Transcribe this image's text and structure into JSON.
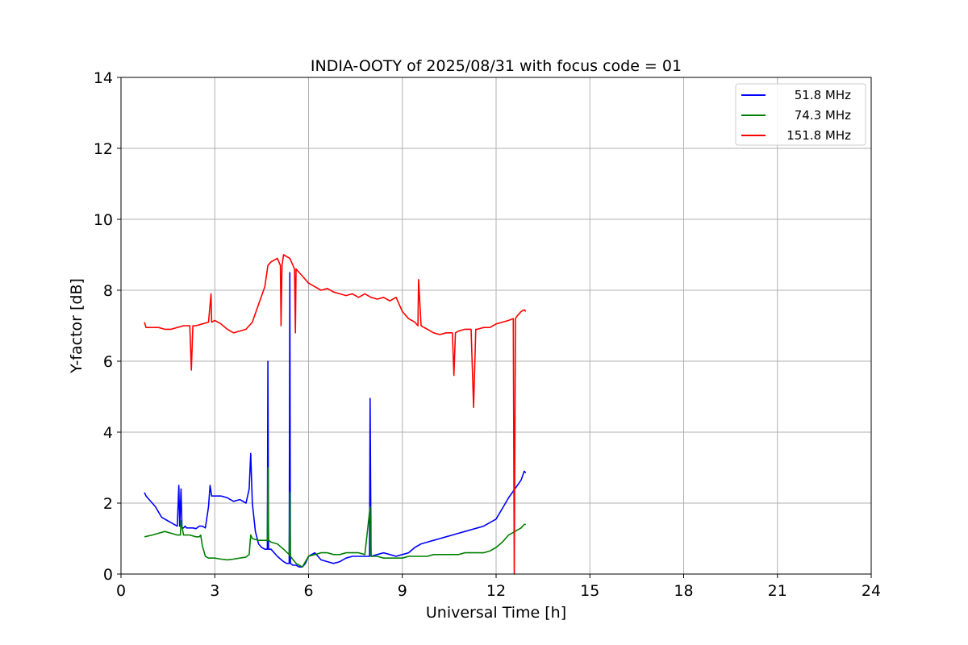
{
  "chart_data": {
    "type": "line",
    "title": "INDIA-OOTY of 2025/08/31 with focus code = 01",
    "xlabel": "Universal Time [h]",
    "ylabel": "Y-factor [dB]",
    "xlim": [
      0,
      24
    ],
    "ylim": [
      0,
      14
    ],
    "xticks": [
      0,
      3,
      6,
      9,
      12,
      15,
      18,
      21,
      24
    ],
    "yticks": [
      0,
      2,
      4,
      6,
      8,
      10,
      12,
      14
    ],
    "grid": true,
    "legend_position": "top-right",
    "series": [
      {
        "name": "51.8 MHz",
        "color": "#0000ff",
        "x": [
          0.75,
          0.8,
          0.9,
          1.0,
          1.1,
          1.2,
          1.3,
          1.4,
          1.5,
          1.6,
          1.7,
          1.8,
          1.85,
          1.88,
          1.92,
          1.95,
          2.0,
          2.05,
          2.1,
          2.2,
          2.3,
          2.4,
          2.5,
          2.6,
          2.7,
          2.8,
          2.85,
          2.9,
          3.0,
          3.2,
          3.4,
          3.6,
          3.8,
          4.0,
          4.1,
          4.15,
          4.2,
          4.3,
          4.4,
          4.5,
          4.6,
          4.68,
          4.7,
          4.72,
          4.8,
          5.0,
          5.2,
          5.3,
          5.38,
          5.4,
          5.42,
          5.5,
          5.6,
          5.7,
          5.8,
          5.9,
          6.0,
          6.2,
          6.4,
          6.6,
          6.8,
          7.0,
          7.2,
          7.4,
          7.5,
          7.6,
          7.8,
          7.95,
          7.97,
          8.0,
          8.2,
          8.4,
          8.6,
          8.8,
          9.0,
          9.2,
          9.4,
          9.6,
          9.8,
          10.0,
          10.2,
          10.4,
          10.6,
          10.8,
          11.0,
          11.2,
          11.4,
          11.6,
          11.8,
          12.0,
          12.2,
          12.4,
          12.6,
          12.8,
          12.9,
          12.95
        ],
        "y": [
          2.3,
          2.2,
          2.1,
          2.0,
          1.9,
          1.75,
          1.6,
          1.55,
          1.5,
          1.45,
          1.4,
          1.35,
          2.5,
          1.35,
          2.4,
          1.3,
          1.3,
          1.35,
          1.3,
          1.3,
          1.3,
          1.28,
          1.35,
          1.35,
          1.3,
          1.9,
          2.5,
          2.2,
          2.2,
          2.2,
          2.15,
          2.05,
          2.1,
          2.0,
          2.4,
          3.4,
          2.0,
          1.2,
          0.85,
          0.75,
          0.7,
          0.7,
          6.0,
          0.7,
          0.7,
          0.5,
          0.35,
          0.3,
          0.3,
          8.5,
          0.3,
          0.25,
          0.25,
          0.2,
          0.2,
          0.3,
          0.5,
          0.6,
          0.4,
          0.35,
          0.3,
          0.35,
          0.45,
          0.5,
          0.5,
          0.5,
          0.5,
          0.5,
          4.95,
          0.5,
          0.55,
          0.6,
          0.55,
          0.5,
          0.55,
          0.6,
          0.75,
          0.85,
          0.9,
          0.95,
          1.0,
          1.05,
          1.1,
          1.15,
          1.2,
          1.25,
          1.3,
          1.35,
          1.45,
          1.55,
          1.85,
          2.15,
          2.4,
          2.65,
          2.9,
          2.85
        ]
      },
      {
        "name": "74.3 MHz",
        "color": "#008000",
        "x": [
          0.75,
          1.0,
          1.2,
          1.4,
          1.6,
          1.8,
          1.9,
          1.92,
          2.0,
          2.2,
          2.4,
          2.5,
          2.55,
          2.6,
          2.7,
          2.8,
          3.0,
          3.2,
          3.4,
          3.6,
          3.8,
          4.0,
          4.1,
          4.15,
          4.2,
          4.4,
          4.6,
          4.68,
          4.7,
          4.72,
          4.8,
          5.0,
          5.2,
          5.38,
          5.4,
          5.42,
          5.6,
          5.8,
          6.0,
          6.2,
          6.4,
          6.6,
          6.8,
          7.0,
          7.2,
          7.4,
          7.6,
          7.8,
          7.97,
          8.0,
          8.2,
          8.4,
          8.6,
          8.8,
          9.0,
          9.2,
          9.4,
          9.6,
          9.8,
          10.0,
          10.2,
          10.4,
          10.6,
          10.8,
          11.0,
          11.2,
          11.4,
          11.6,
          11.8,
          12.0,
          12.2,
          12.4,
          12.6,
          12.8,
          12.9,
          12.95
        ],
        "y": [
          1.05,
          1.1,
          1.15,
          1.2,
          1.15,
          1.1,
          1.1,
          1.5,
          1.1,
          1.1,
          1.05,
          1.05,
          1.1,
          0.8,
          0.5,
          0.45,
          0.45,
          0.42,
          0.4,
          0.42,
          0.45,
          0.48,
          0.55,
          1.1,
          1.0,
          0.95,
          0.95,
          0.95,
          3.0,
          0.95,
          0.9,
          0.85,
          0.7,
          0.55,
          2.3,
          0.5,
          0.3,
          0.2,
          0.5,
          0.55,
          0.6,
          0.6,
          0.55,
          0.55,
          0.6,
          0.6,
          0.6,
          0.55,
          1.9,
          0.5,
          0.5,
          0.45,
          0.45,
          0.45,
          0.45,
          0.5,
          0.5,
          0.5,
          0.5,
          0.55,
          0.55,
          0.55,
          0.55,
          0.55,
          0.6,
          0.6,
          0.6,
          0.6,
          0.65,
          0.75,
          0.9,
          1.1,
          1.2,
          1.3,
          1.4,
          1.4
        ]
      },
      {
        "name": "151.8 MHz",
        "color": "#ff0000",
        "x": [
          0.75,
          0.8,
          1.0,
          1.2,
          1.4,
          1.6,
          1.8,
          2.0,
          2.2,
          2.25,
          2.3,
          2.4,
          2.6,
          2.8,
          2.88,
          2.9,
          3.0,
          3.2,
          3.4,
          3.6,
          3.8,
          4.0,
          4.2,
          4.4,
          4.6,
          4.7,
          4.8,
          5.0,
          5.1,
          5.12,
          5.15,
          5.2,
          5.4,
          5.55,
          5.58,
          5.6,
          5.8,
          6.0,
          6.2,
          6.4,
          6.6,
          6.8,
          7.0,
          7.2,
          7.4,
          7.6,
          7.8,
          8.0,
          8.2,
          8.4,
          8.6,
          8.8,
          9.0,
          9.2,
          9.4,
          9.5,
          9.52,
          9.6,
          9.8,
          10.0,
          10.2,
          10.4,
          10.6,
          10.65,
          10.7,
          10.8,
          11.0,
          11.2,
          11.28,
          11.35,
          11.4,
          11.6,
          11.8,
          12.0,
          12.2,
          12.4,
          12.55,
          12.58,
          12.62,
          12.65,
          12.7,
          12.8,
          12.9,
          12.95
        ],
        "y": [
          7.1,
          6.95,
          6.95,
          6.95,
          6.9,
          6.9,
          6.95,
          7.0,
          7.0,
          5.75,
          7.0,
          7.0,
          7.05,
          7.1,
          7.9,
          7.1,
          7.15,
          7.05,
          6.9,
          6.8,
          6.85,
          6.9,
          7.1,
          7.6,
          8.1,
          8.7,
          8.8,
          8.9,
          8.7,
          7.0,
          8.7,
          9.0,
          8.9,
          8.6,
          6.8,
          8.6,
          8.4,
          8.2,
          8.1,
          8.0,
          8.05,
          7.95,
          7.9,
          7.85,
          7.9,
          7.8,
          7.9,
          7.8,
          7.75,
          7.8,
          7.7,
          7.8,
          7.4,
          7.2,
          7.1,
          7.0,
          8.3,
          7.0,
          6.9,
          6.8,
          6.75,
          6.8,
          6.8,
          5.6,
          6.8,
          6.85,
          6.9,
          6.9,
          4.7,
          6.9,
          6.9,
          6.95,
          6.95,
          7.05,
          7.1,
          7.15,
          7.2,
          0.0,
          7.2,
          7.25,
          7.3,
          7.4,
          7.45,
          7.4
        ]
      }
    ]
  }
}
